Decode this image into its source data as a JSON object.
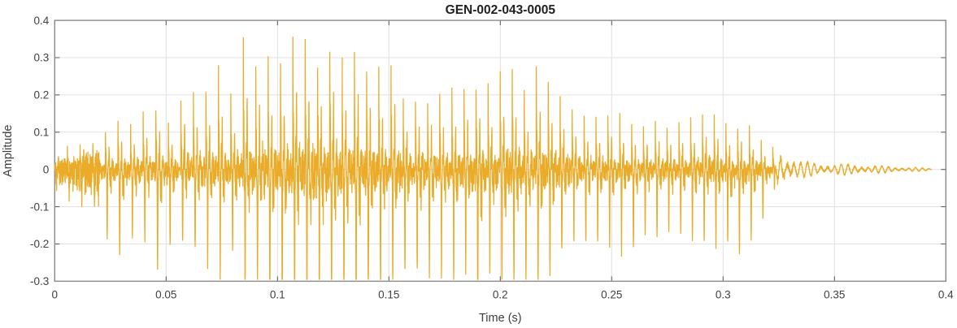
{
  "figure": {
    "background": "#ffffff"
  },
  "styles": {
    "line_color": "#EAAB28",
    "grid_color": "#E0E0E0",
    "axis_box_color": "#8A8A8A",
    "tick_color": "#555555",
    "tick_label_color": "#404040",
    "title_color": "#1F1F1F"
  },
  "chart_data": {
    "type": "line",
    "title": "GEN-002-043-0005",
    "xlabel": "Time (s)",
    "ylabel": "Amplitude",
    "xlim": [
      0,
      0.4
    ],
    "ylim": [
      -0.3,
      0.4
    ],
    "xticks": [
      0,
      0.05,
      0.1,
      0.15,
      0.2,
      0.25,
      0.3,
      0.35,
      0.4
    ],
    "xtick_labels": [
      "0",
      "0.05",
      "0.1",
      "0.15",
      "0.2",
      "0.25",
      "0.3",
      "0.35",
      "0.4"
    ],
    "yticks": [
      -0.3,
      -0.2,
      -0.1,
      0,
      0.1,
      0.2,
      0.3,
      0.4
    ],
    "ytick_labels": [
      "-0.3",
      "-0.2",
      "-0.1",
      "0",
      "0.1",
      "0.2",
      "0.3",
      "0.4"
    ],
    "grid": true,
    "legend": "none",
    "series_name": "audio waveform amplitude",
    "signal": {
      "kind": "speech-like audio waveform, values below are min/max envelope samples read from the plot",
      "duration_s": 0.3935,
      "voiced_end_s": 0.322,
      "pitch_hz_start": 175,
      "pitch_hz_end": 190,
      "peak_amplitude": 0.36,
      "min_amplitude": -0.27,
      "envelope_t": [
        0,
        0.005,
        0.01,
        0.015,
        0.02,
        0.025,
        0.03,
        0.035,
        0.04,
        0.045,
        0.05,
        0.055,
        0.06,
        0.065,
        0.07,
        0.075,
        0.08,
        0.085,
        0.09,
        0.095,
        0.1,
        0.105,
        0.11,
        0.115,
        0.12,
        0.125,
        0.13,
        0.135,
        0.14,
        0.145,
        0.15,
        0.155,
        0.16,
        0.165,
        0.17,
        0.175,
        0.18,
        0.185,
        0.19,
        0.195,
        0.2,
        0.205,
        0.21,
        0.215,
        0.22,
        0.225,
        0.23,
        0.235,
        0.24,
        0.245,
        0.25,
        0.255,
        0.26,
        0.265,
        0.27,
        0.275,
        0.28,
        0.285,
        0.29,
        0.295,
        0.3,
        0.305,
        0.31,
        0.315,
        0.32,
        0.325,
        0.33,
        0.335,
        0.34,
        0.345,
        0.35,
        0.355,
        0.36,
        0.365,
        0.37,
        0.375,
        0.38,
        0.385,
        0.39,
        0.3935
      ],
      "envelope_upper": [
        0.04,
        0.06,
        0.06,
        0.08,
        0.1,
        0.11,
        0.13,
        0.12,
        0.17,
        0.17,
        0.15,
        0.17,
        0.25,
        0.24,
        0.28,
        0.27,
        0.21,
        0.35,
        0.32,
        0.35,
        0.31,
        0.34,
        0.36,
        0.31,
        0.34,
        0.36,
        0.32,
        0.33,
        0.3,
        0.33,
        0.29,
        0.27,
        0.26,
        0.22,
        0.25,
        0.24,
        0.21,
        0.25,
        0.22,
        0.28,
        0.26,
        0.29,
        0.25,
        0.26,
        0.26,
        0.24,
        0.22,
        0.18,
        0.17,
        0.16,
        0.17,
        0.14,
        0.12,
        0.13,
        0.13,
        0.13,
        0.15,
        0.16,
        0.17,
        0.17,
        0.13,
        0.12,
        0.12,
        0.11,
        0.09,
        0.05,
        0.03,
        0.02,
        0.018,
        0.015,
        0.012,
        0.014,
        0.012,
        0.01,
        0.009,
        0.008,
        0.006,
        0.005,
        0.004,
        0.003
      ],
      "envelope_lower": [
        -0.04,
        -0.05,
        -0.07,
        -0.07,
        -0.09,
        -0.12,
        -0.15,
        -0.13,
        -0.12,
        -0.15,
        -0.17,
        -0.13,
        -0.15,
        -0.16,
        -0.18,
        -0.17,
        -0.16,
        -0.24,
        -0.22,
        -0.26,
        -0.27,
        -0.26,
        -0.25,
        -0.26,
        -0.26,
        -0.27,
        -0.26,
        -0.25,
        -0.26,
        -0.25,
        -0.2,
        -0.21,
        -0.22,
        -0.23,
        -0.2,
        -0.22,
        -0.19,
        -0.2,
        -0.26,
        -0.22,
        -0.21,
        -0.23,
        -0.24,
        -0.22,
        -0.2,
        -0.18,
        -0.16,
        -0.14,
        -0.14,
        -0.13,
        -0.13,
        -0.13,
        -0.12,
        -0.11,
        -0.12,
        -0.13,
        -0.13,
        -0.13,
        -0.13,
        -0.13,
        -0.14,
        -0.15,
        -0.14,
        -0.12,
        -0.09,
        -0.05,
        -0.03,
        -0.02,
        -0.018,
        -0.015,
        -0.012,
        -0.014,
        -0.012,
        -0.01,
        -0.009,
        -0.008,
        -0.006,
        -0.005,
        -0.004,
        -0.003
      ]
    }
  }
}
